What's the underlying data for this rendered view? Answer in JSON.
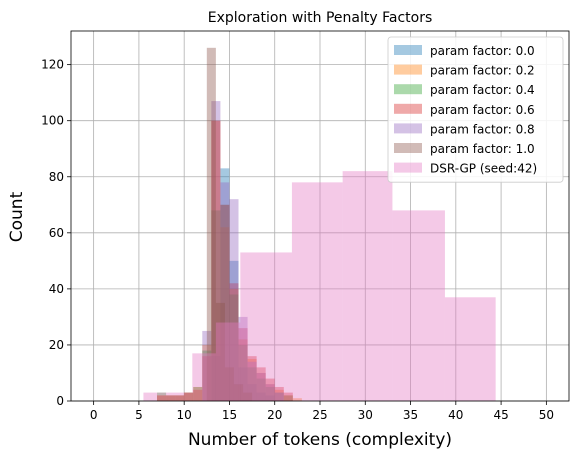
{
  "chart_data": {
    "type": "histogram",
    "title": "Exploration with Penalty Factors",
    "xlabel": "Number of tokens (complexity)",
    "ylabel": "Count",
    "xlim": [
      -2.5,
      52.5
    ],
    "ylim": [
      0,
      132
    ],
    "xticks": [
      0,
      5,
      10,
      15,
      20,
      25,
      30,
      35,
      40,
      45,
      50
    ],
    "yticks": [
      0,
      20,
      40,
      60,
      80,
      100,
      120
    ],
    "grid": true,
    "legend_position": "upper right",
    "series": [
      {
        "name": "param factor: 0.0",
        "color": "#1f77b4",
        "bins": [
          [
            13,
            14,
            16
          ],
          [
            14,
            15,
            83
          ],
          [
            15,
            16,
            50
          ],
          [
            16,
            17,
            12
          ],
          [
            17,
            18,
            6
          ],
          [
            18,
            19,
            3
          ],
          [
            19,
            20,
            2
          ]
        ]
      },
      {
        "name": "param factor: 0.2",
        "color": "#ff7f0e",
        "bins": [
          [
            7,
            8,
            2
          ],
          [
            8,
            9,
            2
          ],
          [
            9,
            10,
            2
          ],
          [
            10,
            11,
            3
          ],
          [
            11,
            12,
            5
          ],
          [
            12,
            13,
            20
          ],
          [
            13,
            14,
            100
          ],
          [
            14,
            15,
            62
          ],
          [
            15,
            16,
            40
          ],
          [
            16,
            17,
            22
          ],
          [
            17,
            18,
            15
          ],
          [
            18,
            19,
            10
          ],
          [
            19,
            20,
            6
          ],
          [
            20,
            21,
            4
          ],
          [
            21,
            22,
            2
          ],
          [
            22,
            23,
            1
          ]
        ]
      },
      {
        "name": "param factor: 0.4",
        "color": "#2ca02c",
        "bins": [
          [
            7,
            8,
            3
          ],
          [
            8,
            9,
            2
          ],
          [
            9,
            10,
            2
          ],
          [
            10,
            11,
            3
          ],
          [
            11,
            12,
            5
          ],
          [
            12,
            13,
            18
          ],
          [
            13,
            14,
            68
          ],
          [
            14,
            15,
            70
          ],
          [
            15,
            16,
            38
          ],
          [
            16,
            17,
            20
          ],
          [
            17,
            18,
            12
          ],
          [
            18,
            19,
            8
          ],
          [
            19,
            20,
            5
          ],
          [
            20,
            21,
            3
          ],
          [
            21,
            22,
            2
          ]
        ]
      },
      {
        "name": "param factor: 0.6",
        "color": "#d62728",
        "bins": [
          [
            7,
            8,
            2
          ],
          [
            8,
            9,
            2
          ],
          [
            9,
            10,
            2
          ],
          [
            10,
            11,
            3
          ],
          [
            11,
            12,
            4
          ],
          [
            12,
            13,
            16
          ],
          [
            13,
            14,
            100
          ],
          [
            14,
            15,
            70
          ],
          [
            15,
            16,
            42
          ],
          [
            16,
            17,
            26
          ],
          [
            17,
            18,
            16
          ],
          [
            18,
            19,
            12
          ],
          [
            19,
            20,
            8
          ],
          [
            20,
            21,
            5
          ],
          [
            21,
            22,
            3
          ]
        ]
      },
      {
        "name": "param factor: 0.8",
        "color": "#9467bd",
        "bins": [
          [
            12,
            13,
            25
          ],
          [
            13,
            14,
            107
          ],
          [
            14,
            15,
            78
          ],
          [
            15,
            16,
            72
          ],
          [
            16,
            17,
            30
          ],
          [
            17,
            18,
            14
          ],
          [
            18,
            19,
            10
          ],
          [
            19,
            20,
            6
          ],
          [
            20,
            21,
            3
          ]
        ]
      },
      {
        "name": "param factor: 1.0",
        "color": "#8c564b",
        "bins": [
          [
            12.5,
            13.5,
            126
          ],
          [
            13.5,
            14.5,
            35
          ],
          [
            14.5,
            15.5,
            12
          ],
          [
            15.5,
            16.5,
            6
          ],
          [
            16.5,
            17.5,
            3
          ]
        ]
      },
      {
        "name": "DSR-GP (seed:42)",
        "color": "#e377c2",
        "bins": [
          [
            5.5,
            8.2,
            3
          ],
          [
            8.2,
            10.9,
            3
          ],
          [
            10.9,
            13.5,
            17
          ],
          [
            13.5,
            16.2,
            28
          ],
          [
            16.2,
            21.9,
            53
          ],
          [
            21.9,
            27.5,
            78
          ],
          [
            27.5,
            33,
            82
          ],
          [
            33,
            38.8,
            68
          ],
          [
            38.8,
            44.4,
            37
          ]
        ]
      }
    ]
  }
}
